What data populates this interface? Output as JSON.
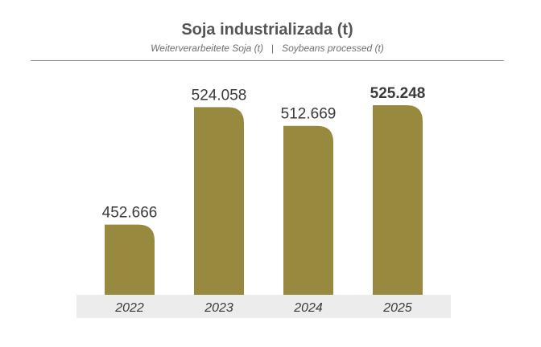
{
  "header": {
    "title": "Soja industrializada (t)",
    "subtitle_de": "Weiterverarbeitete Soja (t)",
    "subtitle_sep": "|",
    "subtitle_en": "Soybeans processed (t)"
  },
  "colors": {
    "bar": "#978a3e",
    "baseline_band": "#ececec",
    "text": "#3a3a3a"
  },
  "chart_data": {
    "type": "bar",
    "title": "Soja industrializada (t)",
    "subtitle": "Weiterverarbeitete Soja (t) | Soybeans processed (t)",
    "categories": [
      "2022",
      "2023",
      "2024",
      "2025"
    ],
    "values": [
      452666,
      524058,
      512669,
      525248
    ],
    "value_labels": [
      "452.666",
      "524.058",
      "512.669",
      "525.248"
    ],
    "highlight_index": 3,
    "xlabel": "",
    "ylabel": "",
    "ylim": [
      410000,
      535000
    ],
    "grid": false,
    "legend": "none"
  }
}
